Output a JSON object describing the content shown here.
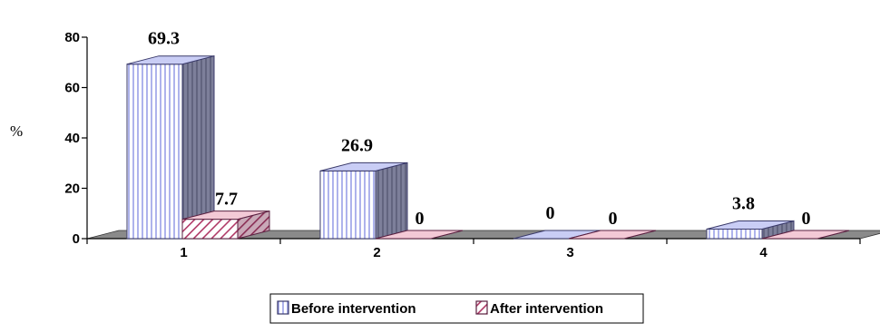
{
  "chart_data": {
    "type": "bar",
    "categories": [
      "1",
      "2",
      "3",
      "4"
    ],
    "series": [
      {
        "name": "Before intervention",
        "values": [
          69.3,
          26.9,
          0,
          3.8
        ],
        "labels": [
          "69.3",
          "26.9",
          "0",
          "3.8"
        ],
        "color": "#c9cdf5",
        "hatch": "vertical-lines"
      },
      {
        "name": "After intervention",
        "values": [
          7.7,
          0,
          0,
          0
        ],
        "labels": [
          "7.7",
          "0",
          "0",
          "0"
        ],
        "color": "#f3c9d6",
        "hatch": "diagonal-lines"
      }
    ],
    "xlabel": "",
    "ylabel": "%",
    "ylim": [
      0,
      80
    ],
    "yticks": [
      0,
      20,
      40,
      60,
      80
    ],
    "grid": false,
    "legend_position": "bottom",
    "style": "3d-clustered-column"
  }
}
